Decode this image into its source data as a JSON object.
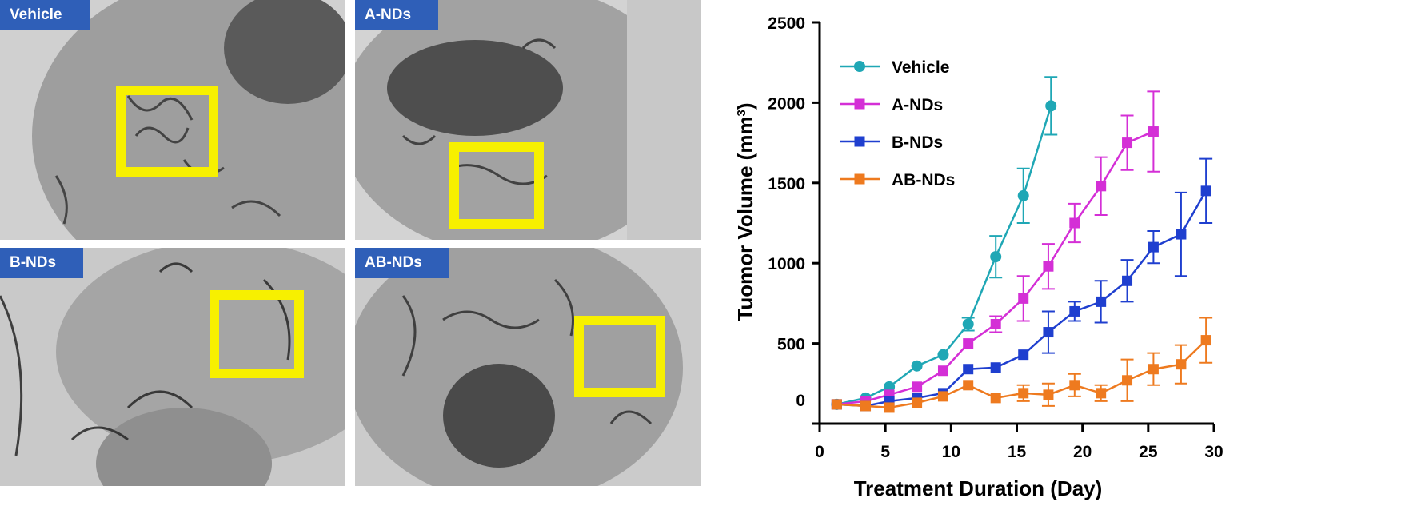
{
  "panels": [
    {
      "id": "vehicle",
      "label": "Vehicle"
    },
    {
      "id": "a-nds",
      "label": "A-NDs"
    },
    {
      "id": "b-nds",
      "label": "B-NDs"
    },
    {
      "id": "ab-nds",
      "label": "AB-NDs"
    }
  ],
  "colors": {
    "vehicle": "#1fa7b5",
    "a_nds": "#d42fd6",
    "b_nds": "#1f3fcf",
    "ab_nds": "#ee7a1f",
    "roi": "#f7f000",
    "label_bg": "#2f5fb8"
  },
  "chart_data": {
    "type": "line",
    "title": "",
    "xlabel": "Treatment Duration (Day)",
    "ylabel": "Tuomor Volume (mm",
    "ylabel_sup": "3",
    "ylabel_end": ")",
    "xlim": [
      0,
      30
    ],
    "ylim": [
      0,
      2500
    ],
    "xticks": [
      0,
      5,
      10,
      15,
      20,
      25,
      30
    ],
    "yticks": [
      0,
      500,
      1000,
      1500,
      2000,
      2500
    ],
    "grid": false,
    "legend_position": "top-left",
    "series": [
      {
        "name": "Vehicle",
        "color": "#1fa7b5",
        "marker": "circle",
        "x": [
          1.3,
          3.5,
          5.3,
          7.4,
          9.4,
          11.3,
          13.4,
          15.5,
          17.6
        ],
        "y": [
          120,
          160,
          230,
          360,
          430,
          620,
          1040,
          1420,
          1980
        ],
        "err": [
          0,
          0,
          0,
          0,
          0,
          40,
          130,
          170,
          180
        ]
      },
      {
        "name": "A-NDs",
        "color": "#d42fd6",
        "marker": "square",
        "x": [
          1.3,
          3.5,
          5.3,
          7.4,
          9.4,
          11.3,
          13.4,
          15.5,
          17.4,
          19.4,
          21.4,
          23.4,
          25.4
        ],
        "y": [
          120,
          140,
          180,
          230,
          330,
          500,
          620,
          780,
          980,
          1250,
          1480,
          1750,
          1820
        ],
        "err": [
          0,
          0,
          0,
          0,
          0,
          0,
          50,
          140,
          140,
          120,
          180,
          170,
          250
        ]
      },
      {
        "name": "B-NDs",
        "color": "#1f3fcf",
        "marker": "square",
        "x": [
          1.3,
          3.5,
          5.3,
          7.4,
          9.4,
          11.3,
          13.4,
          15.5,
          17.4,
          19.4,
          21.4,
          23.4,
          25.4,
          27.5,
          29.4
        ],
        "y": [
          120,
          110,
          140,
          160,
          190,
          340,
          350,
          430,
          570,
          700,
          760,
          890,
          1100,
          1180,
          1450
        ],
        "err": [
          0,
          0,
          0,
          0,
          0,
          0,
          0,
          0,
          130,
          60,
          130,
          130,
          100,
          260,
          200
        ]
      },
      {
        "name": "AB-NDs",
        "color": "#ee7a1f",
        "marker": "square",
        "x": [
          1.3,
          3.5,
          5.3,
          7.4,
          9.4,
          11.3,
          13.4,
          15.5,
          17.4,
          19.4,
          21.4,
          23.4,
          25.4,
          27.5,
          29.4
        ],
        "y": [
          120,
          110,
          100,
          130,
          170,
          240,
          160,
          190,
          180,
          240,
          190,
          270,
          340,
          370,
          520
        ],
        "err": [
          0,
          0,
          0,
          0,
          0,
          0,
          0,
          50,
          70,
          70,
          50,
          130,
          100,
          120,
          140
        ]
      }
    ]
  }
}
